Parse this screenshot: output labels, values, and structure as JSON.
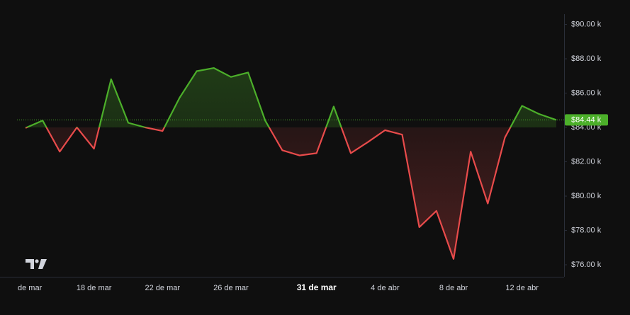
{
  "chart_data": {
    "type": "baseline",
    "categories": [
      "de mar",
      null,
      null,
      null,
      "18 de mar",
      null,
      null,
      null,
      "22 de mar",
      null,
      null,
      null,
      "26 de mar",
      null,
      null,
      null,
      null,
      "31 de mar",
      null,
      null,
      null,
      "4 de abr",
      null,
      null,
      null,
      "8 de abr",
      null,
      null,
      null,
      "12 de abr",
      null,
      null
    ],
    "highlight_index": 17,
    "values": [
      83.97,
      84.4,
      82.59,
      84.0,
      82.76,
      86.81,
      84.27,
      84.0,
      83.79,
      85.73,
      87.28,
      87.46,
      86.94,
      87.2,
      84.4,
      82.67,
      82.37,
      82.5,
      85.22,
      82.5,
      83.15,
      83.84,
      83.58,
      78.19,
      79.14,
      76.34,
      82.59,
      79.57,
      83.41,
      85.26,
      84.78,
      84.44
    ],
    "baseline": 84.0,
    "up_color": "#4caf2a",
    "down_color": "#e84b4b",
    "price_line": {
      "value": 84.44,
      "label": "$84.44 k"
    },
    "ylim": [
      75.3,
      90.6
    ],
    "yticks": [
      {
        "value": 76,
        "label": "$76.00 k"
      },
      {
        "value": 78,
        "label": "$78.00 k"
      },
      {
        "value": 80,
        "label": "$80.00 k"
      },
      {
        "value": 82,
        "label": "$82.00 k"
      },
      {
        "value": 84,
        "label": "$84.00 k"
      },
      {
        "value": 86,
        "label": "$86.00 k"
      },
      {
        "value": 88,
        "label": "$88.00 k"
      },
      {
        "value": 90,
        "label": "$90.00 k"
      }
    ]
  }
}
